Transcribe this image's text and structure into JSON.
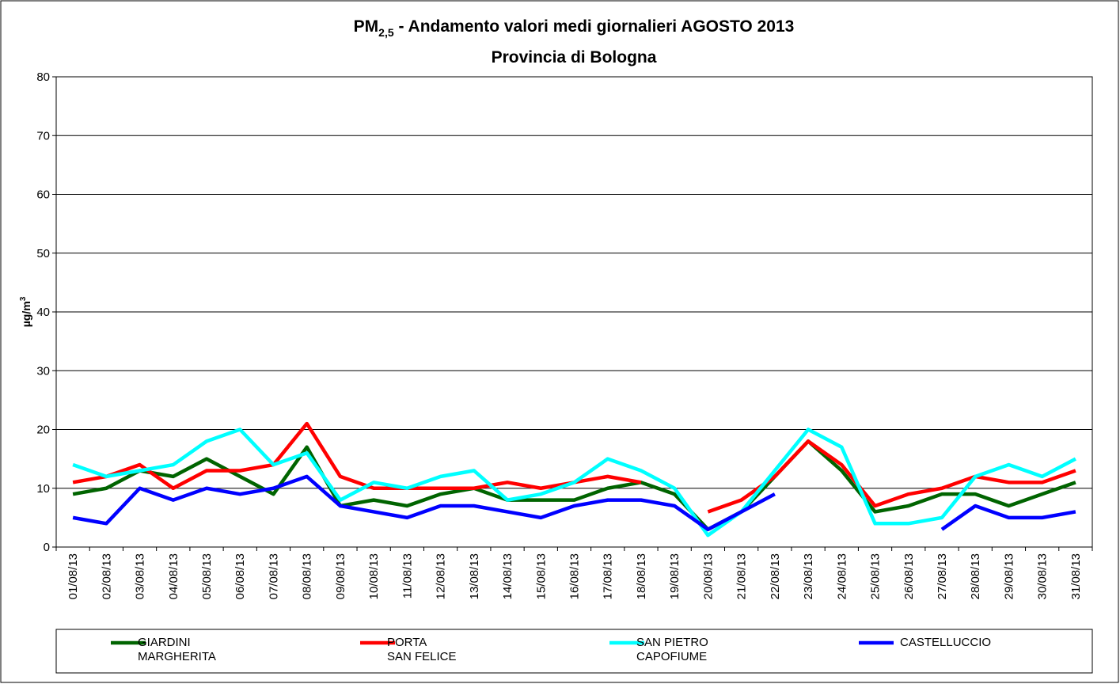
{
  "chart_data": {
    "type": "line",
    "title": {
      "main": "PM",
      "subscript": "2,5",
      "rest": " - Andamento valori medi giornalieri AGOSTO 2013"
    },
    "subtitle": "Provincia di Bologna",
    "ylabel": {
      "main": "µg/m",
      "superscript": "3"
    },
    "categories": [
      "01/08/13",
      "02/08/13",
      "03/08/13",
      "04/08/13",
      "05/08/13",
      "06/08/13",
      "07/08/13",
      "08/08/13",
      "09/08/13",
      "10/08/13",
      "11/08/13",
      "12/08/13",
      "13/08/13",
      "14/08/13",
      "15/08/13",
      "16/08/13",
      "17/08/13",
      "18/08/13",
      "19/08/13",
      "20/08/13",
      "21/08/13",
      "22/08/13",
      "23/08/13",
      "24/08/13",
      "25/08/13",
      "26/08/13",
      "27/08/13",
      "28/08/13",
      "29/08/13",
      "30/08/13",
      "31/08/13"
    ],
    "series": [
      {
        "name": "GIARDINI\nMARGHERITA",
        "color": "#006400",
        "values": [
          9,
          10,
          13,
          12,
          15,
          12,
          9,
          17,
          7,
          8,
          7,
          9,
          10,
          8,
          8,
          8,
          10,
          11,
          9,
          3,
          6,
          12,
          18,
          13,
          6,
          7,
          9,
          9,
          7,
          9,
          11
        ]
      },
      {
        "name": "PORTA\nSAN FELICE",
        "color": "#ff0000",
        "values": [
          11,
          12,
          14,
          10,
          13,
          13,
          14,
          21,
          12,
          10,
          10,
          10,
          10,
          11,
          10,
          11,
          12,
          11,
          null,
          6,
          8,
          12,
          18,
          14,
          7,
          9,
          10,
          12,
          11,
          11,
          13
        ]
      },
      {
        "name": "SAN PIETRO\nCAPOFIUME",
        "color": "#00ffff",
        "values": [
          14,
          12,
          13,
          14,
          18,
          20,
          14,
          16,
          8,
          11,
          10,
          12,
          13,
          8,
          9,
          11,
          15,
          13,
          10,
          2,
          6,
          13,
          20,
          17,
          4,
          4,
          5,
          12,
          14,
          12,
          15
        ]
      },
      {
        "name": "CASTELLUCCIO",
        "color": "#0000ff",
        "values": [
          5,
          4,
          10,
          8,
          10,
          9,
          10,
          12,
          7,
          6,
          5,
          7,
          7,
          6,
          5,
          7,
          8,
          8,
          7,
          3,
          6,
          9,
          null,
          null,
          null,
          null,
          3,
          7,
          5,
          5,
          6
        ]
      }
    ],
    "ylim": [
      0,
      80
    ],
    "yticks": [
      0,
      10,
      20,
      30,
      40,
      50,
      60,
      70,
      80
    ],
    "grid": true
  }
}
